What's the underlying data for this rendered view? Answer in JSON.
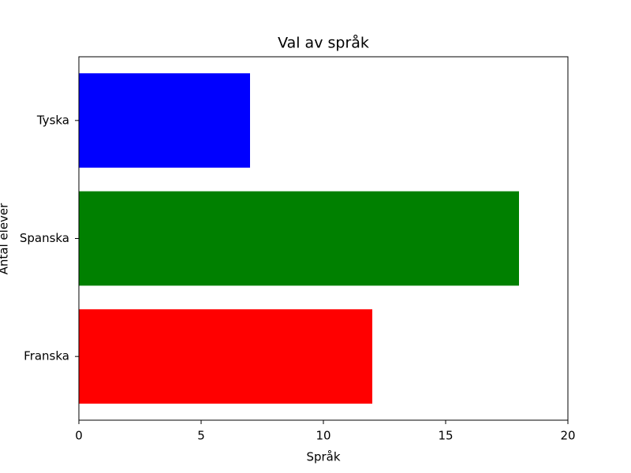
{
  "chart_data": {
    "type": "barh",
    "title": "Val av språk",
    "x_label": "Språk",
    "y_label": "Antal elever",
    "categories": [
      "Franska",
      "Spanska",
      "Tyska"
    ],
    "values": [
      12,
      18,
      7
    ],
    "colors": [
      "#ff0000",
      "#008000",
      "#0000ff"
    ],
    "xlim": [
      0,
      20
    ],
    "xticks": [
      0,
      5,
      10,
      15,
      20
    ],
    "grid": false
  }
}
